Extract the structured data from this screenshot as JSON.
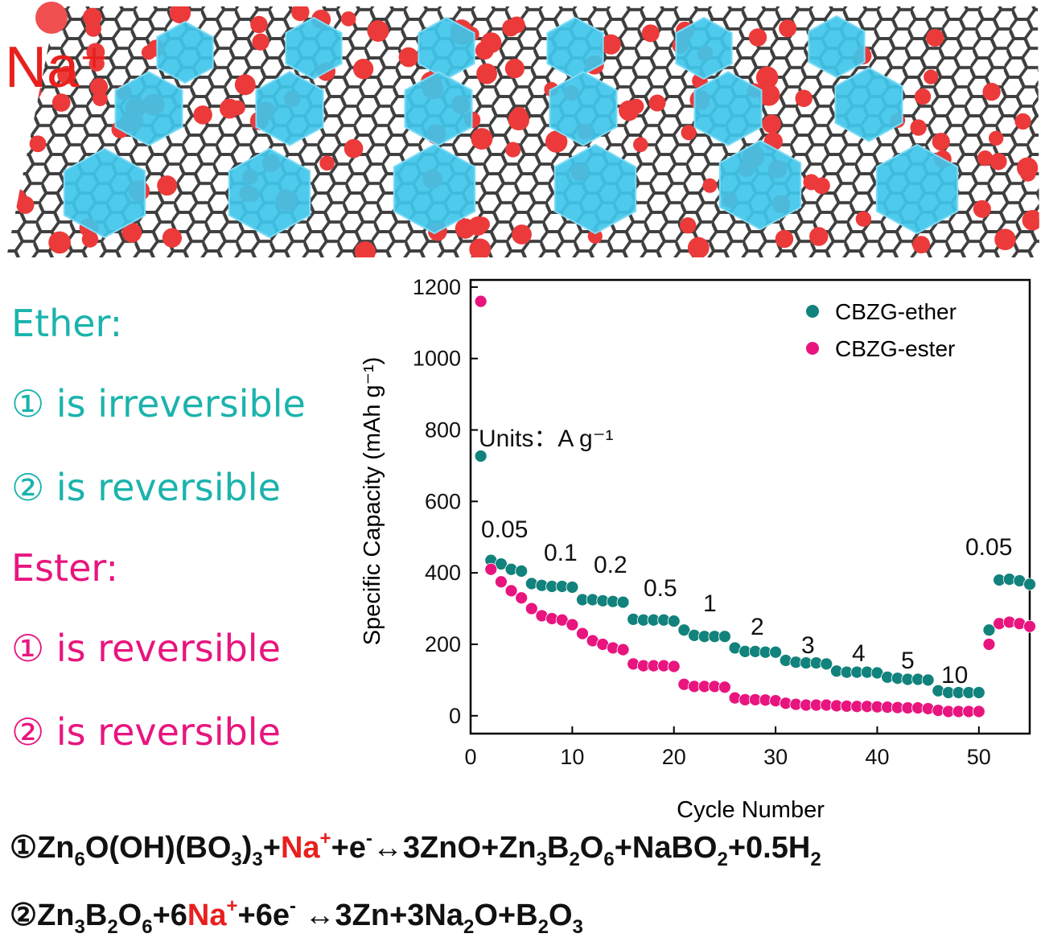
{
  "illustration": {
    "label": "Na⁺"
  },
  "notes": {
    "ether_title": "Ether:",
    "ether_1": "① is irreversible",
    "ether_2": "② is reversible",
    "ester_title": "Ester:",
    "ester_1": "① is reversible",
    "ester_2": "② is reversible",
    "ether_color": "#1bb3ad",
    "ester_color": "#e8157f"
  },
  "chart_data": {
    "type": "scatter",
    "x_label": "Cycle Number",
    "y_label": "Specific Capacity (mAh g⁻¹)",
    "xlim": [
      0,
      55
    ],
    "ylim": [
      -50,
      1220
    ],
    "xticks": [
      0,
      10,
      20,
      30,
      40,
      50
    ],
    "yticks": [
      0,
      200,
      400,
      600,
      800,
      1000,
      1200
    ],
    "legend": "upper right",
    "annotations": [
      "Units：A g⁻¹",
      "0.05",
      "0.1",
      "0.2",
      "0.5",
      "1",
      "2",
      "3",
      "4",
      "5",
      "10",
      "0.05"
    ],
    "x": [
      1,
      2,
      3,
      4,
      5,
      6,
      7,
      8,
      9,
      10,
      11,
      12,
      13,
      14,
      15,
      16,
      17,
      18,
      19,
      20,
      21,
      22,
      23,
      24,
      25,
      26,
      27,
      28,
      29,
      30,
      31,
      32,
      33,
      34,
      35,
      36,
      37,
      38,
      39,
      40,
      41,
      42,
      43,
      44,
      45,
      46,
      47,
      48,
      49,
      50,
      51,
      52,
      53,
      54,
      55
    ],
    "series": [
      {
        "name": "CBZG-ether",
        "color": "#12827c",
        "values": [
          727,
          435,
          425,
          410,
          405,
          370,
          365,
          362,
          362,
          360,
          325,
          325,
          322,
          320,
          318,
          270,
          268,
          268,
          268,
          265,
          240,
          225,
          222,
          222,
          222,
          190,
          180,
          180,
          178,
          178,
          155,
          150,
          148,
          148,
          145,
          125,
          122,
          122,
          122,
          120,
          108,
          105,
          102,
          102,
          100,
          70,
          65,
          65,
          65,
          65,
          240,
          380,
          382,
          378,
          368
        ]
      },
      {
        "name": "CBZG-ester",
        "color": "#e8157f",
        "values": [
          1160,
          410,
          375,
          350,
          330,
          300,
          280,
          272,
          268,
          255,
          230,
          210,
          200,
          190,
          185,
          145,
          140,
          140,
          140,
          138,
          88,
          82,
          82,
          82,
          80,
          50,
          45,
          45,
          44,
          42,
          35,
          32,
          30,
          30,
          30,
          28,
          27,
          26,
          26,
          25,
          24,
          23,
          22,
          22,
          20,
          15,
          12,
          12,
          12,
          12,
          200,
          258,
          262,
          258,
          250
        ]
      }
    ]
  },
  "equations": [
    [
      {
        "text": "①Zn"
      },
      {
        "text": "6",
        "style": "sub"
      },
      {
        "text": "O(OH)(BO"
      },
      {
        "text": "3",
        "style": "sub"
      },
      {
        "text": ")"
      },
      {
        "text": "3",
        "style": "sub"
      },
      {
        "text": "+"
      },
      {
        "text": "Na",
        "style": "red"
      },
      {
        "text": "+",
        "style": "redsup"
      },
      {
        "text": "+e"
      },
      {
        "text": "-",
        "style": "sup"
      },
      {
        "text": "↔3ZnO+Zn"
      },
      {
        "text": "3",
        "style": "sub"
      },
      {
        "text": "B"
      },
      {
        "text": "2",
        "style": "sub"
      },
      {
        "text": "O"
      },
      {
        "text": "6",
        "style": "sub"
      },
      {
        "text": "+NaBO"
      },
      {
        "text": "2",
        "style": "sub"
      },
      {
        "text": "+0.5H"
      },
      {
        "text": "2",
        "style": "sub"
      }
    ],
    [
      {
        "text": "②Zn"
      },
      {
        "text": "3",
        "style": "sub"
      },
      {
        "text": "B"
      },
      {
        "text": "2",
        "style": "sub"
      },
      {
        "text": "O"
      },
      {
        "text": "6",
        "style": "sub"
      },
      {
        "text": "+6"
      },
      {
        "text": "Na",
        "style": "red"
      },
      {
        "text": "+",
        "style": "redsup"
      },
      {
        "text": "+6e"
      },
      {
        "text": "-",
        "style": "sup"
      },
      {
        "text": " ↔3Zn+3Na"
      },
      {
        "text": "2",
        "style": "sub"
      },
      {
        "text": "O+B"
      },
      {
        "text": "2",
        "style": "sub"
      },
      {
        "text": "O"
      },
      {
        "text": "3",
        "style": "sub"
      }
    ]
  ]
}
